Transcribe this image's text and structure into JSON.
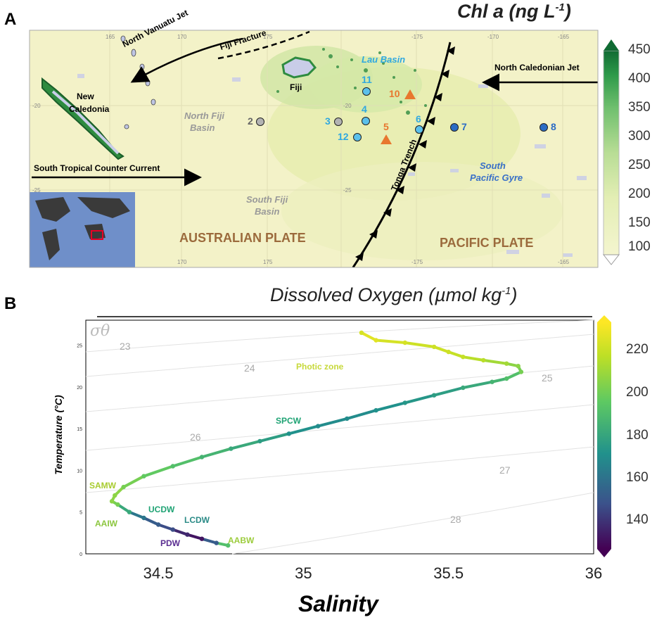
{
  "panels": {
    "a_letter": "A",
    "b_letter": "B"
  },
  "map": {
    "title": "Chl a (ng L",
    "title_sup": "-1",
    "title_end": ")",
    "colorbar_ticks": [
      "450",
      "400",
      "350",
      "300",
      "250",
      "200",
      "150",
      "100"
    ],
    "lon_ticks_top": [
      "165",
      "170",
      "175",
      "-175",
      "-170",
      "-165"
    ],
    "lon_ticks_bottom": [
      "170",
      "175",
      "-175",
      "-165"
    ],
    "lat_ticks": [
      "-20",
      "-25",
      "-20",
      "-25"
    ],
    "labels": {
      "north_vanuatu_jet": "North Vanuatu Jet",
      "fiji_fracture": "Fiji Fracture",
      "lau_basin": "Lau Basin",
      "north_caledonian_jet": "North Caledonian Jet",
      "fiji": "Fiji",
      "new_caledonia_1": "New",
      "new_caledonia_2": "Caledonia",
      "north_fiji_basin_1": "North Fiji",
      "north_fiji_basin_2": "Basin",
      "south_fiji_basin_1": "South Fiji",
      "south_fiji_basin_2": "Basin",
      "stctc": "South Tropical Counter Current",
      "south_pacific_gyre_1": "South",
      "south_pacific_gyre_2": "Pacific Gyre",
      "tonga_trench": "Tonga Trench",
      "australian_plate": "AUSTRALIAN PLATE",
      "pacific_plate": "PACIFIC PLATE"
    },
    "stations": [
      {
        "id": "2",
        "kind": "circle",
        "color": "#b3b3b3"
      },
      {
        "id": "3",
        "kind": "circle",
        "color": "#b3b3b3"
      },
      {
        "id": "4",
        "kind": "circle",
        "color": "#5bc0eb"
      },
      {
        "id": "5",
        "kind": "triangle",
        "color": "#e8772e"
      },
      {
        "id": "6",
        "kind": "circle",
        "color": "#5bc0eb"
      },
      {
        "id": "7",
        "kind": "circle",
        "color": "#2b6cc4"
      },
      {
        "id": "8",
        "kind": "circle",
        "color": "#2b6cc4"
      },
      {
        "id": "10",
        "kind": "triangle",
        "color": "#e8772e"
      },
      {
        "id": "11",
        "kind": "circle",
        "color": "#5bc0eb"
      },
      {
        "id": "12",
        "kind": "circle",
        "color": "#5bc0eb"
      }
    ]
  },
  "ts": {
    "title": "Dissolved Oxygen (µmol kg",
    "title_sup": "-1",
    "title_end": ")",
    "sigma_label": "σθ",
    "colorbar_ticks": [
      "220",
      "200",
      "180",
      "160",
      "140"
    ],
    "water_masses": [
      {
        "name": "Photic zone",
        "color": "#c7d93a"
      },
      {
        "name": "SPCW",
        "color": "#1fa374"
      },
      {
        "name": "SAMW",
        "color": "#a8cc2f"
      },
      {
        "name": "AAIW",
        "color": "#8cc63f"
      },
      {
        "name": "UCDW",
        "color": "#1fa374"
      },
      {
        "name": "LCDW",
        "color": "#2a8a86"
      },
      {
        "name": "PDW",
        "color": "#5a2d91"
      },
      {
        "name": "AABW",
        "color": "#9ccc3c"
      }
    ],
    "isopycnals": [
      "23",
      "24",
      "25",
      "26",
      "27",
      "28"
    ]
  },
  "chart_data": {
    "type": "scatter",
    "title": "Dissolved Oxygen (µmol kg-1)",
    "xlabel": "Salinity",
    "ylabel": "Temperature (°C)",
    "xlim": [
      34.25,
      36
    ],
    "ylim": [
      0,
      28
    ],
    "x_ticks": [
      "34.5",
      "35",
      "35.5",
      "36"
    ],
    "y_ticks": [
      "0",
      "5",
      "10",
      "15",
      "20",
      "25"
    ],
    "colorbar_range": [
      125,
      232
    ],
    "series": [
      {
        "x": [
          34.74,
          34.7,
          34.65,
          34.6,
          34.55,
          34.5,
          34.45,
          34.4,
          34.36,
          34.34,
          34.35,
          34.38,
          34.45,
          34.55,
          34.65,
          34.75,
          34.85,
          34.95,
          35.05,
          35.15,
          35.25,
          35.35,
          35.45,
          35.55,
          35.65,
          35.7,
          35.75,
          35.74,
          35.7,
          35.62,
          35.55,
          35.5,
          35.45,
          35.35,
          35.25,
          35.2
        ],
        "y": [
          1,
          1.3,
          1.8,
          2.3,
          2.9,
          3.5,
          4.3,
          5,
          5.9,
          6.3,
          7,
          8,
          9.3,
          10.5,
          11.6,
          12.6,
          13.5,
          14.4,
          15.3,
          16.2,
          17.2,
          18.1,
          19,
          19.9,
          20.6,
          21,
          21.8,
          22.5,
          22.8,
          23.2,
          23.6,
          24.2,
          24.8,
          25.3,
          25.6,
          26.5
        ],
        "oxygen": [
          190,
          150,
          130,
          135,
          145,
          150,
          160,
          180,
          200,
          205,
          205,
          200,
          195,
          190,
          185,
          180,
          175,
          170,
          168,
          168,
          170,
          172,
          175,
          180,
          185,
          190,
          200,
          205,
          210,
          215,
          218,
          220,
          220,
          222,
          225,
          222
        ]
      }
    ]
  }
}
